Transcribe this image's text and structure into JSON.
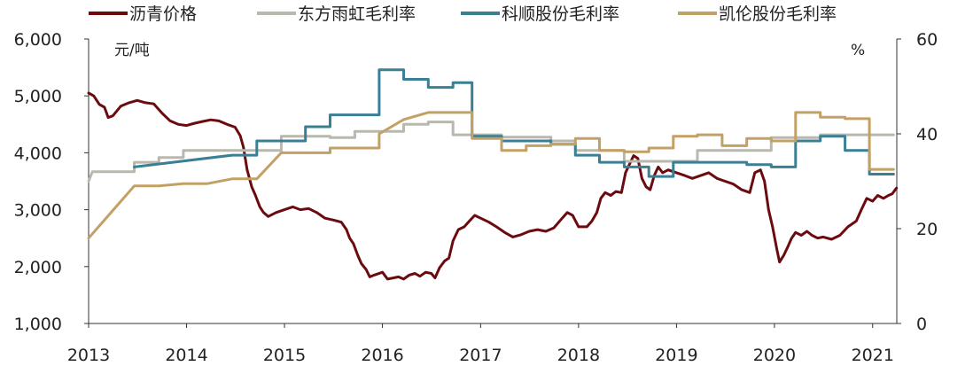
{
  "chart_data": {
    "type": "line",
    "title": "",
    "legend": {
      "placement": "top"
    },
    "grid": false,
    "x_axis": {
      "type": "date",
      "range": [
        "2013-01-01",
        "2021-04-01"
      ],
      "ticks": [
        "2013",
        "2014",
        "2015",
        "2016",
        "2017",
        "2018",
        "2019",
        "2020",
        "2021"
      ]
    },
    "y_left": {
      "unit_label": "元/吨",
      "range": [
        1000,
        6000
      ],
      "ticks": [
        "1,000",
        "2,000",
        "3,000",
        "4,000",
        "5,000",
        "6,000"
      ]
    },
    "y_right": {
      "unit_label": "%",
      "range": [
        0,
        60
      ],
      "ticks": [
        "0",
        "20",
        "40",
        "60"
      ]
    },
    "series": [
      {
        "name": "沥青价格",
        "axis": "left",
        "color": "#6b0b10",
        "points": [
          [
            "2013-01-01",
            5050
          ],
          [
            "2013-01-20",
            5000
          ],
          [
            "2013-02-10",
            4850
          ],
          [
            "2013-03-01",
            4800
          ],
          [
            "2013-03-15",
            4620
          ],
          [
            "2013-04-01",
            4650
          ],
          [
            "2013-05-01",
            4820
          ],
          [
            "2013-06-01",
            4880
          ],
          [
            "2013-07-01",
            4920
          ],
          [
            "2013-08-01",
            4880
          ],
          [
            "2013-09-01",
            4860
          ],
          [
            "2013-10-01",
            4700
          ],
          [
            "2013-11-01",
            4560
          ],
          [
            "2013-12-01",
            4500
          ],
          [
            "2014-01-01",
            4480
          ],
          [
            "2014-02-01",
            4520
          ],
          [
            "2014-03-01",
            4550
          ],
          [
            "2014-04-01",
            4580
          ],
          [
            "2014-05-01",
            4560
          ],
          [
            "2014-06-01",
            4500
          ],
          [
            "2014-07-01",
            4450
          ],
          [
            "2014-07-20",
            4300
          ],
          [
            "2014-08-01",
            4100
          ],
          [
            "2014-08-15",
            3700
          ],
          [
            "2014-09-01",
            3400
          ],
          [
            "2014-09-15",
            3250
          ],
          [
            "2014-10-01",
            3050
          ],
          [
            "2014-10-15",
            2950
          ],
          [
            "2014-11-01",
            2880
          ],
          [
            "2014-12-01",
            2950
          ],
          [
            "2015-01-01",
            3000
          ],
          [
            "2015-02-01",
            3050
          ],
          [
            "2015-03-01",
            3000
          ],
          [
            "2015-04-01",
            3020
          ],
          [
            "2015-05-01",
            2950
          ],
          [
            "2015-06-01",
            2850
          ],
          [
            "2015-07-01",
            2820
          ],
          [
            "2015-08-01",
            2780
          ],
          [
            "2015-08-20",
            2650
          ],
          [
            "2015-09-01",
            2500
          ],
          [
            "2015-09-15",
            2400
          ],
          [
            "2015-10-01",
            2200
          ],
          [
            "2015-10-15",
            2050
          ],
          [
            "2015-11-01",
            1950
          ],
          [
            "2015-11-15",
            1820
          ],
          [
            "2015-12-01",
            1850
          ],
          [
            "2016-01-01",
            1900
          ],
          [
            "2016-01-20",
            1780
          ],
          [
            "2016-02-10",
            1800
          ],
          [
            "2016-03-01",
            1820
          ],
          [
            "2016-03-20",
            1780
          ],
          [
            "2016-04-10",
            1850
          ],
          [
            "2016-05-01",
            1880
          ],
          [
            "2016-05-20",
            1830
          ],
          [
            "2016-06-10",
            1900
          ],
          [
            "2016-07-01",
            1880
          ],
          [
            "2016-07-15",
            1800
          ],
          [
            "2016-08-01",
            1980
          ],
          [
            "2016-08-20",
            2100
          ],
          [
            "2016-09-05",
            2150
          ],
          [
            "2016-09-20",
            2450
          ],
          [
            "2016-10-10",
            2650
          ],
          [
            "2016-11-01",
            2700
          ],
          [
            "2016-11-20",
            2800
          ],
          [
            "2016-12-10",
            2900
          ],
          [
            "2017-01-01",
            2850
          ],
          [
            "2017-02-01",
            2780
          ],
          [
            "2017-03-01",
            2700
          ],
          [
            "2017-04-01",
            2600
          ],
          [
            "2017-05-01",
            2520
          ],
          [
            "2017-06-01",
            2560
          ],
          [
            "2017-07-01",
            2620
          ],
          [
            "2017-08-01",
            2650
          ],
          [
            "2017-09-01",
            2620
          ],
          [
            "2017-10-01",
            2680
          ],
          [
            "2017-11-01",
            2850
          ],
          [
            "2017-11-20",
            2950
          ],
          [
            "2017-12-10",
            2900
          ],
          [
            "2018-01-01",
            2700
          ],
          [
            "2018-02-01",
            2700
          ],
          [
            "2018-02-20",
            2800
          ],
          [
            "2018-03-10",
            2950
          ],
          [
            "2018-03-25",
            3200
          ],
          [
            "2018-04-10",
            3300
          ],
          [
            "2018-05-01",
            3250
          ],
          [
            "2018-05-20",
            3320
          ],
          [
            "2018-06-10",
            3300
          ],
          [
            "2018-06-25",
            3650
          ],
          [
            "2018-07-10",
            3800
          ],
          [
            "2018-07-25",
            3950
          ],
          [
            "2018-08-10",
            3900
          ],
          [
            "2018-08-25",
            3550
          ],
          [
            "2018-09-10",
            3400
          ],
          [
            "2018-09-25",
            3350
          ],
          [
            "2018-10-10",
            3600
          ],
          [
            "2018-10-25",
            3750
          ],
          [
            "2018-11-10",
            3650
          ],
          [
            "2018-12-01",
            3700
          ],
          [
            "2019-01-01",
            3650
          ],
          [
            "2019-02-01",
            3600
          ],
          [
            "2019-03-01",
            3550
          ],
          [
            "2019-04-01",
            3600
          ],
          [
            "2019-05-01",
            3650
          ],
          [
            "2019-06-01",
            3550
          ],
          [
            "2019-07-01",
            3500
          ],
          [
            "2019-08-01",
            3450
          ],
          [
            "2019-09-01",
            3350
          ],
          [
            "2019-10-01",
            3300
          ],
          [
            "2019-10-20",
            3650
          ],
          [
            "2019-11-10",
            3700
          ],
          [
            "2019-11-25",
            3500
          ],
          [
            "2019-12-10",
            3000
          ],
          [
            "2019-12-25",
            2700
          ],
          [
            "2020-01-10",
            2300
          ],
          [
            "2020-01-20",
            2080
          ],
          [
            "2020-02-05",
            2200
          ],
          [
            "2020-02-20",
            2350
          ],
          [
            "2020-03-05",
            2500
          ],
          [
            "2020-03-20",
            2600
          ],
          [
            "2020-04-10",
            2550
          ],
          [
            "2020-05-01",
            2620
          ],
          [
            "2020-05-20",
            2550
          ],
          [
            "2020-06-10",
            2500
          ],
          [
            "2020-07-01",
            2520
          ],
          [
            "2020-08-01",
            2480
          ],
          [
            "2020-09-01",
            2550
          ],
          [
            "2020-10-01",
            2700
          ],
          [
            "2020-11-01",
            2800
          ],
          [
            "2020-11-20",
            3000
          ],
          [
            "2020-12-10",
            3200
          ],
          [
            "2021-01-01",
            3150
          ],
          [
            "2021-01-20",
            3250
          ],
          [
            "2021-02-10",
            3200
          ],
          [
            "2021-03-01",
            3250
          ],
          [
            "2021-03-15",
            3280
          ],
          [
            "2021-03-31",
            3380
          ]
        ]
      },
      {
        "name": "东方雨虹毛利率",
        "axis": "right",
        "color": "#b8b8ae",
        "points": [
          [
            "2013-01-01",
            30
          ],
          [
            "2013-01-15",
            32
          ],
          [
            "2013-06-20",
            32
          ],
          [
            "2013-06-20",
            34
          ],
          [
            "2013-09-20",
            34
          ],
          [
            "2013-09-20",
            35
          ],
          [
            "2013-12-20",
            35
          ],
          [
            "2013-12-20",
            36.5
          ],
          [
            "2014-12-20",
            36.5
          ],
          [
            "2014-12-20",
            39.5
          ],
          [
            "2015-06-20",
            39.5
          ],
          [
            "2015-06-20",
            39.2
          ],
          [
            "2015-09-20",
            39.2
          ],
          [
            "2015-09-20",
            40.5
          ],
          [
            "2016-03-20",
            40.5
          ],
          [
            "2016-03-20",
            42
          ],
          [
            "2016-06-20",
            42
          ],
          [
            "2016-06-20",
            42.5
          ],
          [
            "2016-09-20",
            42.5
          ],
          [
            "2016-09-20",
            39.8
          ],
          [
            "2017-03-20",
            39.8
          ],
          [
            "2017-03-20",
            39.3
          ],
          [
            "2017-09-20",
            39.3
          ],
          [
            "2017-09-20",
            38.5
          ],
          [
            "2017-12-20",
            38.5
          ],
          [
            "2017-12-20",
            36.5
          ],
          [
            "2018-06-20",
            36.5
          ],
          [
            "2018-06-20",
            34.2
          ],
          [
            "2019-03-20",
            34.2
          ],
          [
            "2019-03-20",
            36.5
          ],
          [
            "2019-12-20",
            36.5
          ],
          [
            "2019-12-20",
            39.2
          ],
          [
            "2020-06-20",
            39.2
          ],
          [
            "2020-06-20",
            39.8
          ],
          [
            "2021-03-20",
            39.8
          ]
        ]
      },
      {
        "name": "科顺股份毛利率",
        "axis": "right",
        "color": "#3a7f93",
        "points": [
          [
            "2013-06-20",
            33
          ],
          [
            "2014-06-20",
            35.5
          ],
          [
            "2014-09-20",
            35.5
          ],
          [
            "2014-09-20",
            38.5
          ],
          [
            "2015-03-20",
            38.5
          ],
          [
            "2015-03-20",
            41.5
          ],
          [
            "2015-06-20",
            41.5
          ],
          [
            "2015-06-20",
            44
          ],
          [
            "2015-12-20",
            44
          ],
          [
            "2015-12-20",
            53.5
          ],
          [
            "2016-03-20",
            53.5
          ],
          [
            "2016-03-20",
            51.5
          ],
          [
            "2016-06-20",
            51.5
          ],
          [
            "2016-06-20",
            49.8
          ],
          [
            "2016-09-20",
            49.8
          ],
          [
            "2016-09-20",
            50.8
          ],
          [
            "2016-11-30",
            50.8
          ],
          [
            "2016-11-30",
            39.5
          ],
          [
            "2017-03-20",
            39.5
          ],
          [
            "2017-03-20",
            38.5
          ],
          [
            "2017-09-20",
            38.5
          ],
          [
            "2017-09-20",
            37.8
          ],
          [
            "2017-12-20",
            37.8
          ],
          [
            "2017-12-20",
            35.5
          ],
          [
            "2018-03-20",
            35.5
          ],
          [
            "2018-03-20",
            34
          ],
          [
            "2018-06-20",
            34
          ],
          [
            "2018-06-20",
            33
          ],
          [
            "2018-09-20",
            33
          ],
          [
            "2018-09-20",
            31
          ],
          [
            "2018-12-20",
            31
          ],
          [
            "2018-12-20",
            34
          ],
          [
            "2019-09-20",
            34
          ],
          [
            "2019-09-20",
            33.5
          ],
          [
            "2019-12-20",
            33.5
          ],
          [
            "2019-12-20",
            33
          ],
          [
            "2020-03-20",
            33
          ],
          [
            "2020-03-20",
            38.5
          ],
          [
            "2020-06-20",
            38.5
          ],
          [
            "2020-06-20",
            39.5
          ],
          [
            "2020-09-20",
            39.5
          ],
          [
            "2020-09-20",
            36.5
          ],
          [
            "2020-12-20",
            36.5
          ],
          [
            "2020-12-20",
            31.5
          ],
          [
            "2021-03-20",
            31.5
          ]
        ]
      },
      {
        "name": "凯伦股份毛利率",
        "axis": "right",
        "color": "#c3a065",
        "points": [
          [
            "2013-01-01",
            18
          ],
          [
            "2013-06-20",
            29
          ],
          [
            "2013-09-20",
            29
          ],
          [
            "2013-12-20",
            29.5
          ],
          [
            "2014-03-20",
            29.5
          ],
          [
            "2014-06-20",
            30.5
          ],
          [
            "2014-09-20",
            30.5
          ],
          [
            "2014-12-20",
            36
          ],
          [
            "2015-06-20",
            36
          ],
          [
            "2015-06-20",
            37
          ],
          [
            "2015-12-20",
            37
          ],
          [
            "2015-12-20",
            40
          ],
          [
            "2016-03-20",
            43
          ],
          [
            "2016-06-20",
            44.5
          ],
          [
            "2016-11-30",
            44.5
          ],
          [
            "2016-11-30",
            39
          ],
          [
            "2017-03-20",
            39
          ],
          [
            "2017-03-20",
            36.5
          ],
          [
            "2017-06-20",
            36.5
          ],
          [
            "2017-06-20",
            37.5
          ],
          [
            "2017-09-20",
            37.5
          ],
          [
            "2017-09-20",
            37.8
          ],
          [
            "2017-12-20",
            37.8
          ],
          [
            "2017-12-20",
            39
          ],
          [
            "2018-03-20",
            39
          ],
          [
            "2018-03-20",
            36.5
          ],
          [
            "2018-06-20",
            36.5
          ],
          [
            "2018-06-20",
            36.2
          ],
          [
            "2018-09-20",
            36.2
          ],
          [
            "2018-09-20",
            37
          ],
          [
            "2018-12-20",
            37
          ],
          [
            "2018-12-20",
            39.5
          ],
          [
            "2019-03-20",
            39.5
          ],
          [
            "2019-03-20",
            39.8
          ],
          [
            "2019-06-20",
            39.8
          ],
          [
            "2019-06-20",
            37.5
          ],
          [
            "2019-09-20",
            37.5
          ],
          [
            "2019-09-20",
            39
          ],
          [
            "2019-12-20",
            39
          ],
          [
            "2019-12-20",
            38.5
          ],
          [
            "2020-03-20",
            38.5
          ],
          [
            "2020-03-20",
            44.5
          ],
          [
            "2020-06-20",
            44.5
          ],
          [
            "2020-06-20",
            43.5
          ],
          [
            "2020-09-20",
            43.5
          ],
          [
            "2020-09-20",
            43.2
          ],
          [
            "2020-12-20",
            43.2
          ],
          [
            "2020-12-20",
            32.5
          ],
          [
            "2021-03-20",
            32.5
          ]
        ]
      }
    ]
  }
}
